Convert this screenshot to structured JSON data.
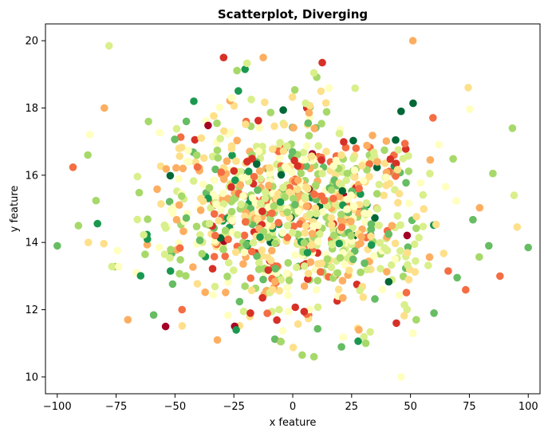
{
  "chart_data": {
    "type": "scatter",
    "title": "Scatterplot, Diverging",
    "xlabel": "x feature",
    "ylabel": "y feature",
    "xlim": [
      -105,
      105
    ],
    "ylim": [
      9.5,
      20.5
    ],
    "xticks": [
      -100,
      -75,
      -50,
      -25,
      0,
      25,
      50,
      75,
      100
    ],
    "yticks": [
      10,
      12,
      14,
      16,
      18,
      20
    ],
    "grid": false,
    "colormap": "RdYlGn",
    "palette": [
      "#a50026",
      "#d73027",
      "#f46d43",
      "#fdae61",
      "#fee08b",
      "#ffffbf",
      "#d9ef8b",
      "#a6d96a",
      "#66bd63",
      "#1a9850",
      "#006837"
    ],
    "point_count": 1000,
    "x_distribution": {
      "mean": 0,
      "std": 30
    },
    "y_distribution": {
      "mean": 15,
      "std": 1.5
    },
    "outliers": [
      {
        "x": -100,
        "y": 13.9,
        "color": "#66bd63"
      },
      {
        "x": 100,
        "y": 13.85,
        "color": "#66bd63"
      },
      {
        "x": -78,
        "y": 19.85,
        "color": "#d9ef8b"
      },
      {
        "x": 51,
        "y": 20.0,
        "color": "#fdae61"
      },
      {
        "x": 46,
        "y": 10.0,
        "color": "#ffffbf"
      },
      {
        "x": 9,
        "y": 10.6,
        "color": "#a6d96a"
      },
      {
        "x": 4,
        "y": 10.65,
        "color": "#a6d96a"
      },
      {
        "x": -54,
        "y": 11.5,
        "color": "#a50026"
      },
      {
        "x": -80,
        "y": 18.0,
        "color": "#fdae61"
      },
      {
        "x": 46,
        "y": 17.9,
        "color": "#006837"
      },
      {
        "x": -42,
        "y": 18.2,
        "color": "#1a9850"
      },
      {
        "x": 12,
        "y": 18.5,
        "color": "#fee08b"
      },
      {
        "x": -26,
        "y": 18.3,
        "color": "#ffffbf"
      },
      {
        "x": -87,
        "y": 16.6,
        "color": "#a6d96a"
      },
      {
        "x": -91,
        "y": 14.5,
        "color": "#a6d96a"
      },
      {
        "x": 94,
        "y": 15.4,
        "color": "#d9ef8b"
      },
      {
        "x": 88,
        "y": 13.0,
        "color": "#f46d43"
      },
      {
        "x": -70,
        "y": 11.7,
        "color": "#fdae61"
      },
      {
        "x": -24,
        "y": 11.4,
        "color": "#1a9850"
      },
      {
        "x": -18,
        "y": 11.9,
        "color": "#d73027"
      },
      {
        "x": 44,
        "y": 11.6,
        "color": "#d73027"
      },
      {
        "x": 31,
        "y": 11.0,
        "color": "#a6d96a"
      },
      {
        "x": -5,
        "y": 11.05,
        "color": "#a6d96a"
      },
      {
        "x": -47,
        "y": 12.0,
        "color": "#f46d43"
      },
      {
        "x": -32,
        "y": 11.1,
        "color": "#fdae61"
      },
      {
        "x": 60,
        "y": 11.9,
        "color": "#66bd63"
      },
      {
        "x": 51,
        "y": 11.3,
        "color": "#ffffbf"
      }
    ]
  }
}
